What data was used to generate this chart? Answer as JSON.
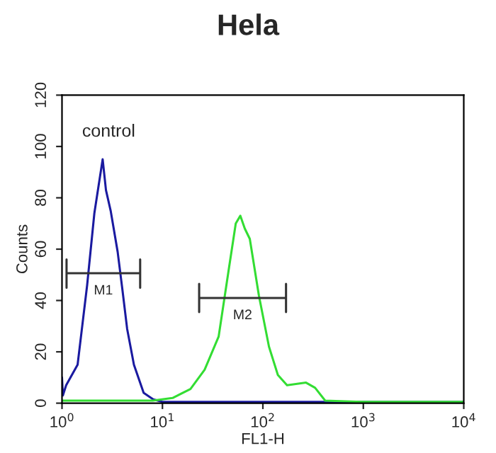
{
  "chart_data": {
    "type": "line",
    "title": "Hela",
    "xlabel": "FL1-H",
    "ylabel": "Counts",
    "log": "x",
    "xlim": [
      1,
      10000
    ],
    "xticks": [
      {
        "value": 1,
        "label": "10$^{0}$"
      },
      {
        "value": 10,
        "label": "10$^{1}$"
      },
      {
        "value": 100,
        "label": "10$^{2}$"
      },
      {
        "value": 1000,
        "label": "10$^{3}$"
      },
      {
        "value": 10000,
        "label": "10$^{4}$"
      }
    ],
    "ylim": [
      0,
      120
    ],
    "yticks": [
      0,
      20,
      40,
      60,
      80,
      100,
      120
    ],
    "grid": false,
    "legend": false,
    "marker": "none",
    "line_style": "solid",
    "series": [
      {
        "color": "#1a1aa0",
        "x": [
          1.0,
          1.02,
          1.1,
          1.43,
          1.78,
          2.1,
          2.32,
          2.54,
          2.74,
          3.05,
          3.58,
          4.0,
          4.45,
          5.2,
          6.5,
          8.1,
          10,
          30,
          100,
          1000,
          10000
        ],
        "values": [
          10,
          3,
          7,
          15,
          46,
          74,
          85,
          95,
          83,
          75,
          59,
          44,
          29,
          15,
          4,
          1.5,
          0.5,
          0.5,
          0.5,
          0.5,
          0.5
        ]
      },
      {
        "color": "#33dd33",
        "x": [
          1.0,
          3,
          8,
          12.6,
          19,
          26.3,
          36.3,
          45.7,
          53.7,
          59.6,
          66.1,
          74.1,
          91.2,
          115,
          141,
          174,
          269,
          331,
          417,
          1000,
          10000
        ],
        "values": [
          1,
          1,
          1,
          2,
          5.5,
          13,
          26,
          52,
          70,
          73,
          68,
          64,
          42,
          22,
          11,
          7,
          8,
          6,
          1,
          0.5,
          0.5
        ]
      },
      {
        "color": "#333333",
        "x": [
          1.11,
          1.11,
          1.11,
          6.0,
          6.0,
          6.0
        ],
        "values": [
          56,
          45,
          50.6,
          50.6,
          56,
          45
        ]
      },
      {
        "color": "#333333",
        "x": [
          23.2,
          23.2,
          23.2,
          170,
          170,
          170
        ],
        "values": [
          46.5,
          35.5,
          41,
          41,
          46.5,
          35.5
        ]
      }
    ],
    "annotations": [
      "control",
      "M1",
      "M2"
    ]
  }
}
